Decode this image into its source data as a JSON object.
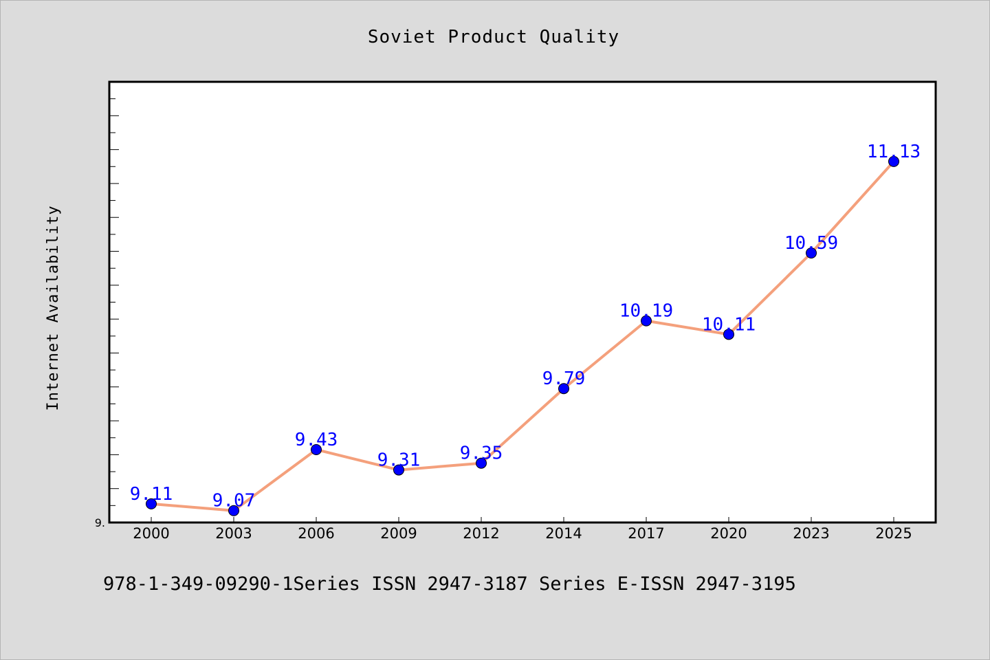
{
  "chart_data": {
    "type": "line",
    "title": "Soviet Product Quality",
    "xlabel": "",
    "ylabel": "Internet Availability",
    "categories": [
      "2000",
      "2003",
      "2006",
      "2009",
      "2012",
      "2014",
      "2017",
      "2020",
      "2023",
      "2025"
    ],
    "series": [
      {
        "values": [
          9.11,
          9.07,
          9.43,
          9.31,
          9.35,
          9.79,
          10.19,
          10.11,
          10.59,
          11.13
        ]
      }
    ],
    "ylim": [
      9.0,
      11.6
    ],
    "yticks": [
      {
        "value": 9.0,
        "label": "9."
      }
    ],
    "ytick_minor_step": 0.1,
    "ytick_major_step": 0.2,
    "grid": false,
    "line_color": "#f4a07c",
    "marker_color": "#0000ff",
    "label_color": "#0000ff"
  },
  "footer": "978-1-349-09290-1Series ISSN 2947-3187 Series E-ISSN 2947-3195"
}
